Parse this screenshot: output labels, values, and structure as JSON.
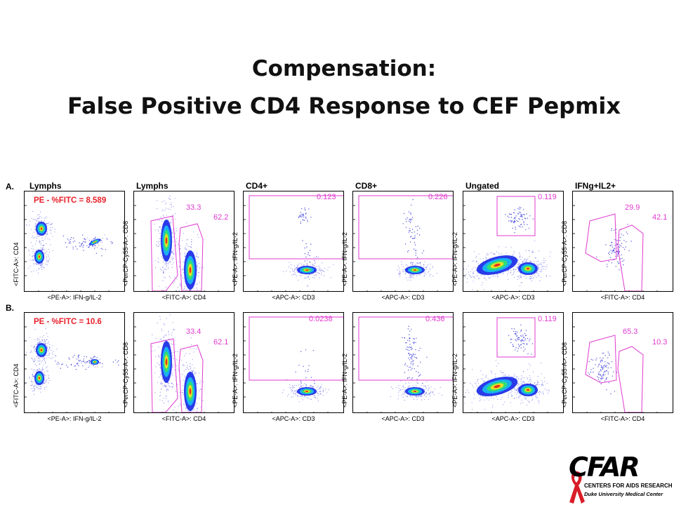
{
  "title": {
    "line1": "Compensation:",
    "line2": "False Positive CD4 Response to CEF Pepmix"
  },
  "rows": [
    {
      "label": "A.",
      "panels": [
        {
          "gate": "Lymphs",
          "xlabel": "<PE-A>: IFN-g/IL-2",
          "ylabel": "<FITC-A>: CD4",
          "comp_label": "PE - %FITC = 8.589",
          "stats": []
        },
        {
          "gate": "Lymphs",
          "xlabel": "<FITC-A>: CD4",
          "ylabel": "<PerCP-Cy55-A>: CD8",
          "stats": [
            "33.3",
            "62.2"
          ]
        },
        {
          "gate": "CD4+",
          "xlabel": "<APC-A>: CD3",
          "ylabel": "<PE-A>: IFN-g/IL-2",
          "stats": [
            "0.123"
          ]
        },
        {
          "gate": "CD8+",
          "xlabel": "<APC-A>: CD3",
          "ylabel": "<PE-A>: IFN-g/IL-2",
          "stats": [
            "0.226"
          ]
        },
        {
          "gate": "Ungated",
          "xlabel": "<APC-A>: CD3",
          "ylabel": "<PE-A>: IFN-g/IL-2",
          "stats": [
            "0.119"
          ]
        },
        {
          "gate": "IFNg+IL2+",
          "xlabel": "<FITC-A>: CD4",
          "ylabel": "<PerCP-Cy55-A>: CD8",
          "stats": [
            "29.9",
            "42.1"
          ]
        }
      ]
    },
    {
      "label": "B.",
      "panels": [
        {
          "gate": "",
          "xlabel": "<PE-A>: IFN-g/IL-2",
          "ylabel": "<FITC-A>: CD4",
          "comp_label": "PE - %FITC = 10.6",
          "stats": []
        },
        {
          "gate": "",
          "xlabel": "<FITC-A>: CD4",
          "ylabel": "<PerCP-Cy55-A>: CD8",
          "stats": [
            "33.4",
            "62.1"
          ]
        },
        {
          "gate": "",
          "xlabel": "<APC-A>: CD3",
          "ylabel": "<PE-A>: IFN-g/IL-2",
          "stats": [
            "0.0238"
          ]
        },
        {
          "gate": "",
          "xlabel": "<APC-A>: CD3",
          "ylabel": "<PE-A>: IFN-g/IL-2",
          "stats": [
            "0.436"
          ]
        },
        {
          "gate": "",
          "xlabel": "<APC-A>: CD3",
          "ylabel": "<PE-A>: IFN-g/IL-2",
          "stats": [
            "0.119"
          ]
        },
        {
          "gate": "",
          "xlabel": "<FITC-A>: CD4",
          "ylabel": "<PerCP-Cy55-A>: CD8",
          "stats": [
            "65.3",
            "10.3"
          ]
        }
      ]
    }
  ],
  "colors": {
    "gate": "#e03ad0",
    "comp_label": "#e8202a",
    "dots": "#2a2ad8"
  },
  "chart_data": {
    "type": "scatter",
    "title": "Compensation: False Positive CD4 Response to CEF Pepmix",
    "panel_stats": {
      "A": [
        null,
        [
          33.3,
          62.2
        ],
        [
          0.123
        ],
        [
          0.226
        ],
        [
          0.119
        ],
        [
          29.9,
          42.1
        ]
      ],
      "B": [
        null,
        [
          33.4,
          62.1
        ],
        [
          0.0238
        ],
        [
          0.436
        ],
        [
          0.119
        ],
        [
          65.3,
          10.3
        ]
      ]
    },
    "compensation": {
      "A": 8.589,
      "B": 10.6
    }
  },
  "logo": {
    "name": "CFAR",
    "line1": "CENTERS FOR AIDS RESEARCH",
    "line2": "Duke University Medical Center"
  }
}
